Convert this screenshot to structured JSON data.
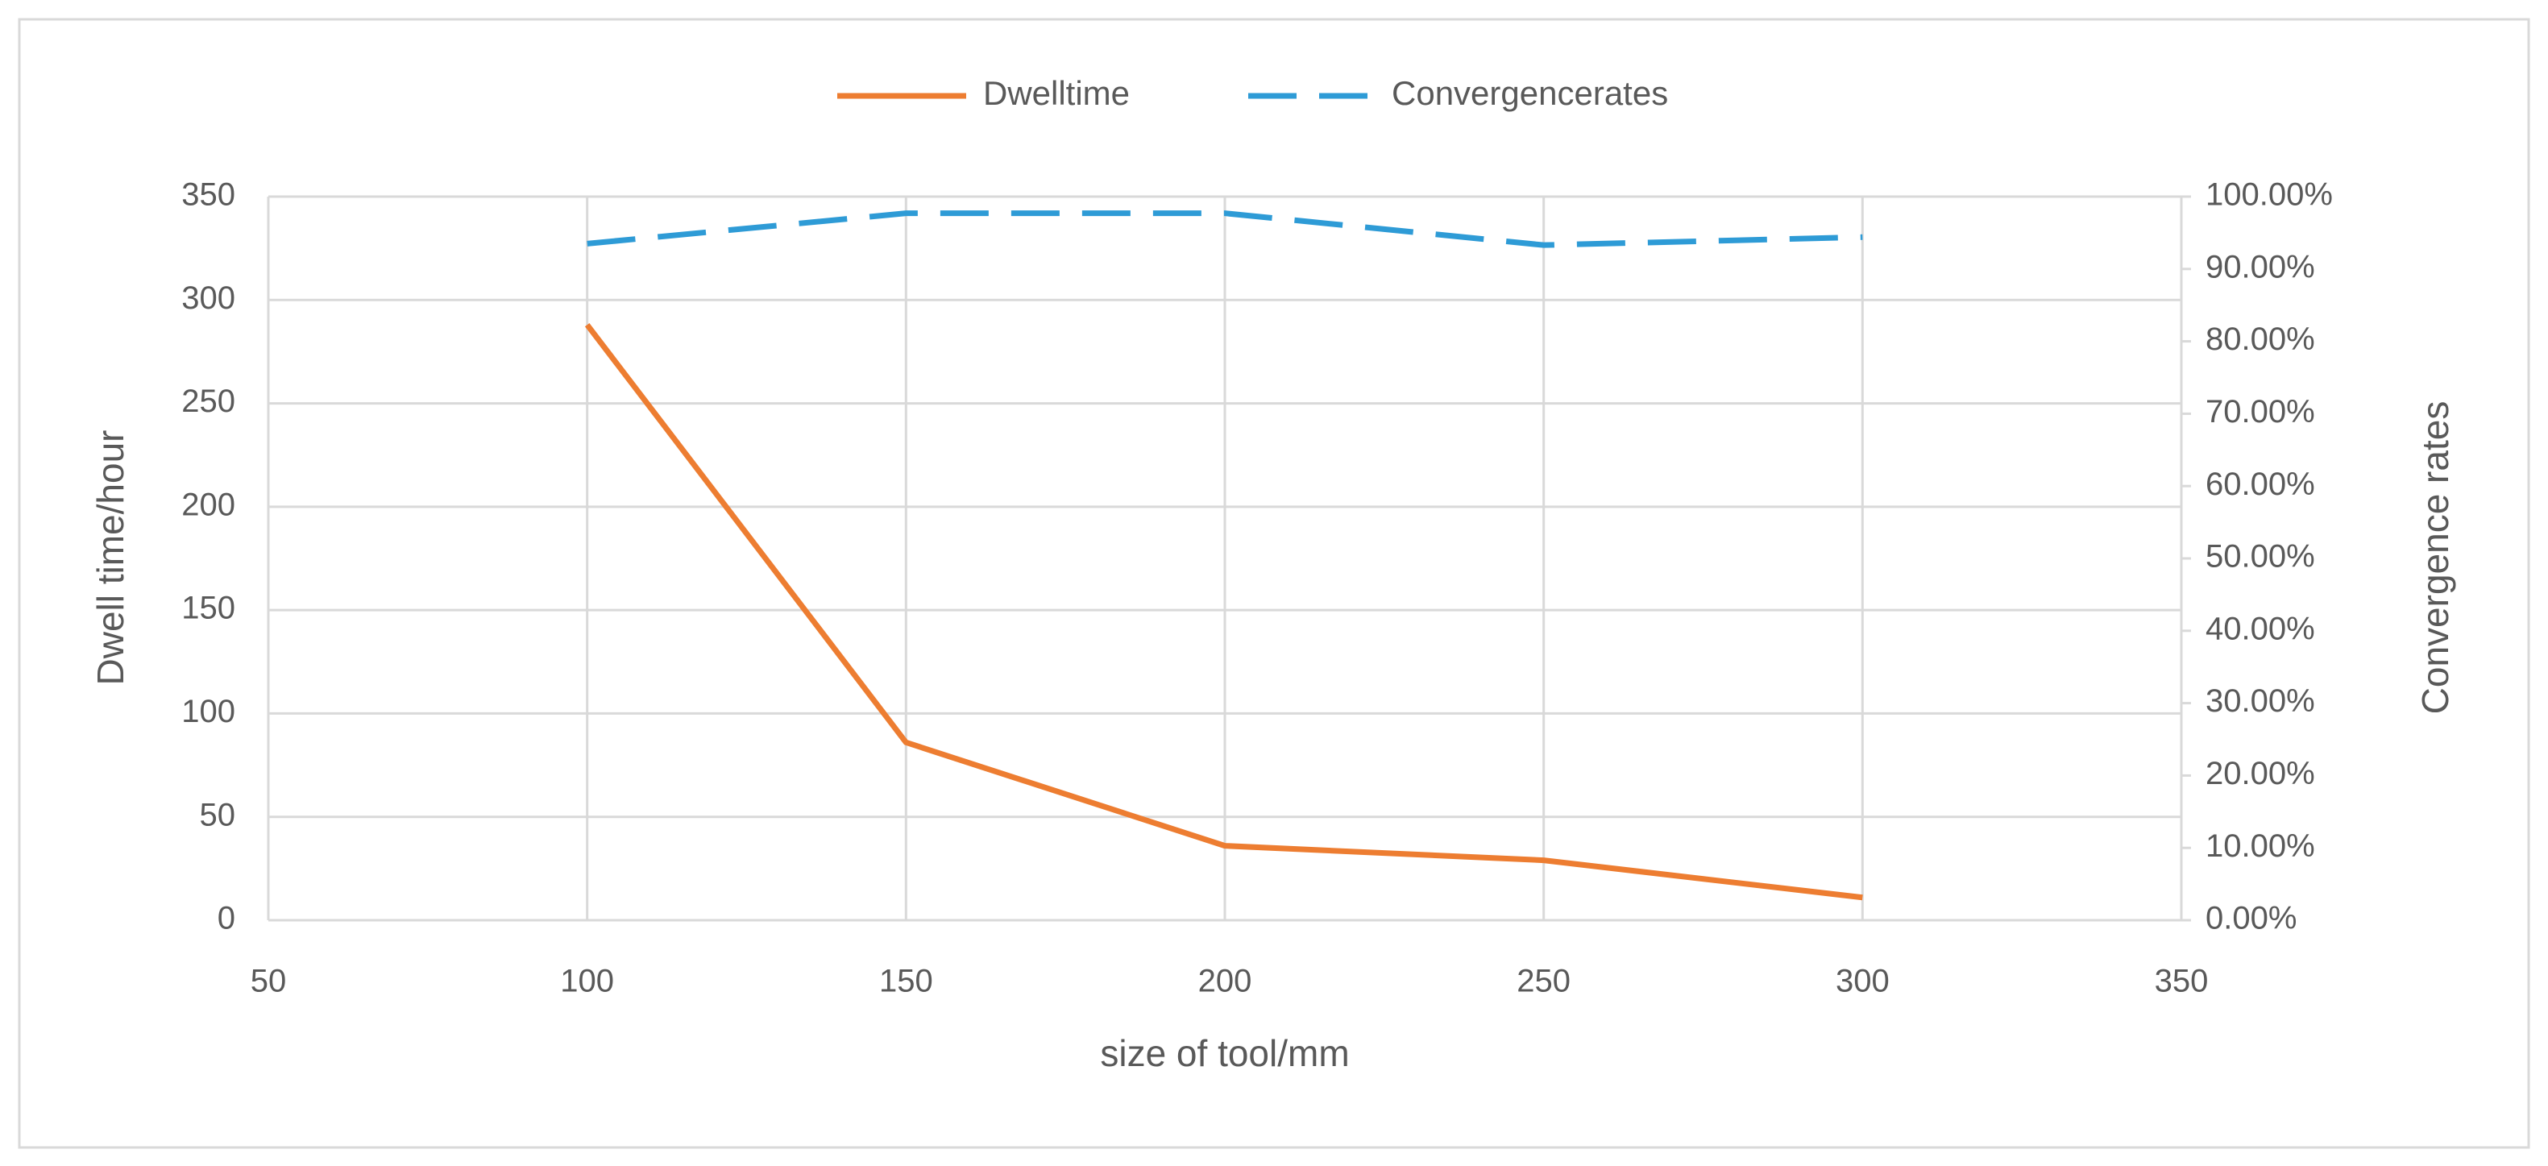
{
  "chart_data": {
    "type": "line",
    "x_label": "size of tool/mm",
    "y_label": "Dwell time/hour",
    "y2_label": "Convergence rates",
    "x": [
      100,
      150,
      200,
      250,
      300
    ],
    "series": [
      {
        "name": "Dwelltime",
        "color": "#ed7d31",
        "style": "solid",
        "values": [
          288,
          86,
          36,
          29,
          11
        ]
      },
      {
        "name": "Convergencerates",
        "color": "#2e9bd6",
        "style": "dashed",
        "axis": "y2",
        "values": [
          93.5,
          97.7,
          97.7,
          93.3,
          94.4
        ]
      }
    ],
    "xlim": [
      50,
      350
    ],
    "xticks": [
      50,
      100,
      150,
      200,
      250,
      300,
      350
    ],
    "ylim": [
      0,
      350
    ],
    "yticks": [
      0,
      50,
      100,
      150,
      200,
      250,
      300,
      350
    ],
    "y2lim": [
      0,
      100
    ],
    "y2ticks": [
      {
        "value": 0,
        "label": "0.00%"
      },
      {
        "value": 10,
        "label": "10.00%"
      },
      {
        "value": 20,
        "label": "20.00%"
      },
      {
        "value": 30,
        "label": "30.00%"
      },
      {
        "value": 40,
        "label": "40.00%"
      },
      {
        "value": 50,
        "label": "50.00%"
      },
      {
        "value": 60,
        "label": "60.00%"
      },
      {
        "value": 70,
        "label": "70.00%"
      },
      {
        "value": 80,
        "label": "80.00%"
      },
      {
        "value": 90,
        "label": "90.00%"
      },
      {
        "value": 100,
        "label": "100.00%"
      }
    ],
    "grid": true,
    "legend": "top"
  }
}
